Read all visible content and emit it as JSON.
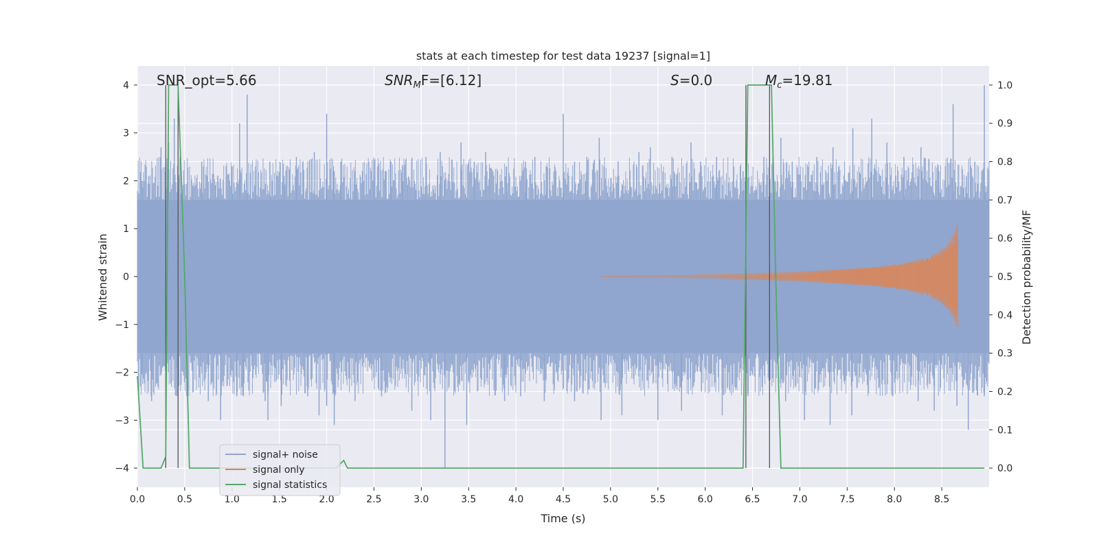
{
  "chart_data": {
    "type": "line",
    "title": "stats at each timestep for test data 19237 [signal=1]",
    "xlabel": "Time (s)",
    "ylabel": "Whitened strain",
    "ylabel_right": "Detection probability/MF",
    "xlim": [
      0.0,
      9.0
    ],
    "ylim": [
      -4.4,
      4.4
    ],
    "ylim_right": [
      -0.05,
      1.05
    ],
    "xticks": [
      "0.0",
      "0.5",
      "1.0",
      "1.5",
      "2.0",
      "2.5",
      "3.0",
      "3.5",
      "4.0",
      "4.5",
      "5.0",
      "5.5",
      "6.0",
      "6.5",
      "7.0",
      "7.5",
      "8.0",
      "8.5"
    ],
    "yticks": [
      "4",
      "3",
      "2",
      "1",
      "0",
      "−1",
      "−2",
      "−3",
      "−4"
    ],
    "yticks_right": [
      "1.0",
      "0.9",
      "0.8",
      "0.7",
      "0.6",
      "0.5",
      "0.4",
      "0.3",
      "0.2",
      "0.1",
      "0.0"
    ],
    "grid": true,
    "annotations": [
      "SNR_opt=5.66",
      "SNR",
      "M",
      "F=[6.12]",
      "S",
      "=0.0",
      "M",
      "c",
      "=19.81"
    ],
    "legend": {
      "placement": "lower-left",
      "entries": [
        "signal+ noise",
        "signal only",
        "signal statistics"
      ]
    },
    "series": [
      {
        "name": "signal+ noise",
        "axis": "left",
        "color": "#8FA5CE",
        "description_band": [
          -1.6,
          1.6
        ],
        "peaks_x": [
          0.05,
          0.12,
          0.25,
          0.33,
          0.39,
          0.45,
          0.68,
          0.85,
          1.0,
          1.08,
          1.16,
          1.25,
          1.4,
          1.55,
          1.68,
          1.87,
          2.0,
          2.08,
          2.15,
          2.3,
          2.5,
          2.68,
          2.8,
          3.05,
          3.2,
          3.42,
          3.56,
          3.68,
          3.9,
          4.1,
          4.2,
          4.32,
          4.5,
          4.62,
          4.75,
          4.88,
          5.08,
          5.3,
          5.42,
          5.65,
          5.85,
          5.95,
          6.12,
          6.4,
          6.62,
          6.8,
          6.92,
          7.18,
          7.35,
          7.56,
          7.76,
          7.92,
          8.1,
          8.28,
          8.47,
          8.62,
          8.76,
          8.85,
          8.95
        ],
        "peaks_y": [
          2.0,
          2.1,
          2.7,
          2.8,
          3.3,
          2.5,
          2.4,
          2.1,
          2.3,
          3.2,
          3.8,
          2.3,
          2.4,
          2.1,
          2.5,
          2.6,
          3.4,
          2.2,
          2.4,
          2.2,
          2.1,
          2.4,
          2.3,
          2.5,
          2.6,
          2.8,
          2.4,
          2.6,
          2.3,
          2.4,
          2.5,
          2.3,
          3.4,
          2.4,
          2.5,
          2.9,
          2.4,
          2.6,
          2.7,
          2.5,
          2.8,
          2.4,
          2.5,
          2.2,
          2.5,
          2.9,
          2.4,
          2.5,
          2.7,
          3.1,
          3.3,
          2.8,
          2.5,
          2.7,
          2.2,
          3.6,
          2.1,
          2.4,
          4.0
        ],
        "troughs_x": [
          0.05,
          0.15,
          0.42,
          0.75,
          0.88,
          1.05,
          1.12,
          1.35,
          1.38,
          1.52,
          1.8,
          1.92,
          2.0,
          2.08,
          2.3,
          2.58,
          2.9,
          3.1,
          3.25,
          3.48,
          3.88,
          4.05,
          4.3,
          4.62,
          4.9,
          5.12,
          5.5,
          5.75,
          5.96,
          6.18,
          6.45,
          6.85,
          7.05,
          7.32,
          7.55,
          7.98,
          8.25,
          8.42,
          8.66,
          8.78,
          8.95
        ],
        "troughs_y": [
          -2.0,
          -2.6,
          -2.5,
          -2.6,
          -3.0,
          -2.5,
          -2.5,
          -2.6,
          -3.0,
          -2.7,
          -2.5,
          -2.9,
          -2.7,
          -3.1,
          -2.6,
          -2.5,
          -2.8,
          -3.0,
          -4.0,
          -3.1,
          -2.6,
          -2.5,
          -2.6,
          -2.6,
          -3.0,
          -2.9,
          -3.0,
          -2.8,
          -2.4,
          -2.9,
          -2.5,
          -2.6,
          -3.0,
          -3.1,
          -2.9,
          -2.5,
          -2.6,
          -2.8,
          -2.7,
          -3.2,
          -2.5
        ]
      },
      {
        "name": "signal only",
        "axis": "left",
        "color": "#DD8452",
        "x": [
          4.9,
          5.4,
          5.8,
          6.2,
          6.6,
          7.0,
          7.4,
          7.8,
          8.1,
          8.3,
          8.45,
          8.55,
          8.62,
          8.66,
          8.67
        ],
        "envelope": [
          0.01,
          0.02,
          0.03,
          0.05,
          0.07,
          0.1,
          0.15,
          0.2,
          0.28,
          0.38,
          0.5,
          0.65,
          0.85,
          1.1,
          1.15
        ]
      },
      {
        "name": "signal statistics",
        "axis": "right",
        "color": "#55A868",
        "x": [
          0.0,
          0.06,
          0.25,
          0.3,
          0.33,
          0.38,
          0.43,
          0.5,
          0.55,
          0.6,
          2.0,
          2.1,
          2.18,
          2.22,
          2.3,
          3.5,
          3.68,
          4.0,
          5.8,
          5.92,
          6.05,
          6.4,
          6.45,
          6.5,
          6.7,
          6.75,
          6.8,
          6.95,
          7.0,
          7.08,
          8.95
        ],
        "y": [
          0.24,
          0.0,
          0.0,
          0.03,
          1.0,
          1.0,
          1.0,
          0.5,
          0.0,
          0.0,
          0.0,
          0.0,
          0.02,
          0.0,
          0.0,
          0.0,
          0.0,
          0.0,
          0.0,
          0.0,
          0.0,
          0.0,
          1.0,
          1.0,
          1.0,
          0.45,
          0.0,
          0.0,
          0.0,
          0.0,
          0.0
        ]
      }
    ],
    "vertical_lines_x": [
      0.3,
      0.43,
      6.43,
      6.68
    ]
  }
}
